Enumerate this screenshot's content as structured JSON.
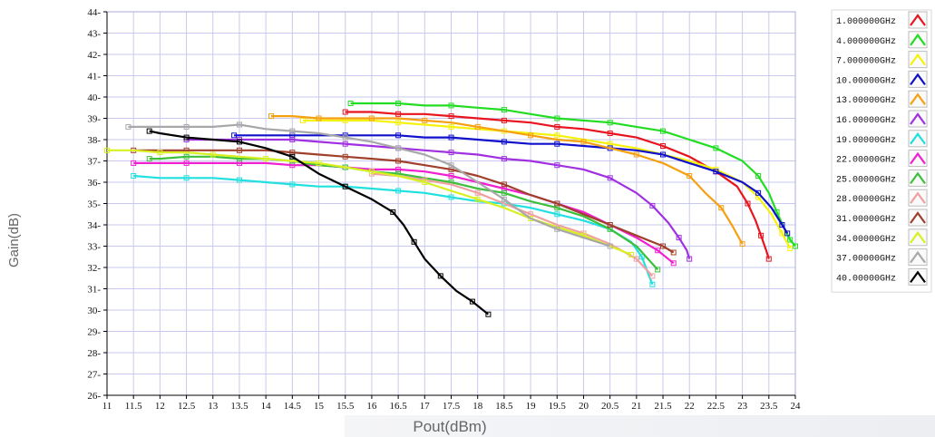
{
  "chart_data": {
    "type": "line",
    "title": "",
    "xlabel": "Pout(dBm)",
    "ylabel": "Gain(dB)",
    "xlim": [
      11,
      24
    ],
    "ylim": [
      26,
      44
    ],
    "x_ticks": [
      "11",
      "11.5",
      "12",
      "12.5",
      "13",
      "13.5",
      "14",
      "14.5",
      "15",
      "15.5",
      "16",
      "16.5",
      "17",
      "17.5",
      "18",
      "18.5",
      "19",
      "19.5",
      "20",
      "20.5",
      "21",
      "21.5",
      "22",
      "22.5",
      "23",
      "23.5",
      "24"
    ],
    "y_ticks": [
      "26",
      "27",
      "28",
      "29",
      "30",
      "31",
      "32",
      "33",
      "34",
      "35",
      "36",
      "37",
      "38",
      "39",
      "40",
      "41",
      "42",
      "43",
      "44"
    ],
    "grid": true,
    "legend_position": "right",
    "series": [
      {
        "name": "1.000000GHz",
        "color": "#e8141e",
        "x": [
          15.5,
          16.0,
          16.5,
          17.0,
          17.5,
          18.0,
          18.5,
          19.0,
          19.5,
          20.0,
          20.5,
          21.0,
          21.5,
          22.0,
          22.5,
          22.9,
          23.1,
          23.25,
          23.35,
          23.45,
          23.5
        ],
        "y": [
          39.3,
          39.3,
          39.2,
          39.2,
          39.1,
          39.0,
          38.9,
          38.8,
          38.6,
          38.5,
          38.3,
          38.1,
          37.7,
          37.2,
          36.5,
          35.8,
          35.0,
          34.2,
          33.5,
          32.8,
          32.4
        ]
      },
      {
        "name": "4.000000GHz",
        "color": "#22dd22",
        "x": [
          15.6,
          16.0,
          16.5,
          17.0,
          17.5,
          18.0,
          18.5,
          19.0,
          19.5,
          20.0,
          20.5,
          21.0,
          21.5,
          22.0,
          22.5,
          23.0,
          23.3,
          23.5,
          23.65,
          23.8,
          23.9,
          24.0
        ],
        "y": [
          39.7,
          39.7,
          39.7,
          39.6,
          39.6,
          39.5,
          39.4,
          39.2,
          39.0,
          38.9,
          38.8,
          38.6,
          38.4,
          38.0,
          37.6,
          37.0,
          36.3,
          35.5,
          34.6,
          33.8,
          33.3,
          33.0
        ]
      },
      {
        "name": "7.000000GHz",
        "color": "#f5f20a",
        "x": [
          14.7,
          15.0,
          15.5,
          16.0,
          16.5,
          17.0,
          17.5,
          18.0,
          18.5,
          19.0,
          19.5,
          20.0,
          20.5,
          21.0,
          21.5,
          22.0,
          22.5,
          23.0,
          23.3,
          23.55,
          23.75,
          23.9
        ],
        "y": [
          38.9,
          38.9,
          38.9,
          38.9,
          38.8,
          38.7,
          38.6,
          38.5,
          38.4,
          38.3,
          38.2,
          38.0,
          37.8,
          37.6,
          37.3,
          37.0,
          36.6,
          36.0,
          35.3,
          34.5,
          33.6,
          32.9
        ]
      },
      {
        "name": "10.00000GHz",
        "color": "#1010cc",
        "x": [
          13.4,
          14.0,
          14.5,
          15.0,
          15.5,
          16.0,
          16.5,
          17.0,
          17.5,
          18.0,
          18.5,
          19.0,
          19.5,
          20.0,
          20.5,
          21.0,
          21.5,
          22.0,
          22.5,
          23.0,
          23.3,
          23.55,
          23.75,
          23.85
        ],
        "y": [
          38.2,
          38.2,
          38.2,
          38.2,
          38.2,
          38.2,
          38.2,
          38.1,
          38.1,
          38.0,
          37.9,
          37.8,
          37.8,
          37.7,
          37.6,
          37.5,
          37.3,
          36.9,
          36.5,
          36.0,
          35.5,
          34.8,
          34.0,
          33.6
        ]
      },
      {
        "name": "13.00000GHz",
        "color": "#f5a010",
        "x": [
          14.1,
          14.5,
          15.0,
          15.5,
          16.0,
          16.5,
          17.0,
          17.5,
          18.0,
          18.5,
          19.0,
          19.5,
          20.0,
          20.5,
          21.0,
          21.5,
          22.0,
          22.3,
          22.6,
          22.8,
          23.0
        ],
        "y": [
          39.1,
          39.1,
          39.0,
          39.0,
          39.0,
          39.0,
          38.9,
          38.8,
          38.6,
          38.4,
          38.2,
          38.0,
          37.9,
          37.6,
          37.3,
          36.9,
          36.3,
          35.5,
          34.8,
          34.0,
          33.1
        ]
      },
      {
        "name": "16.00000GHz",
        "color": "#a030e0",
        "x": [
          12.5,
          13.0,
          13.5,
          14.0,
          14.5,
          15.0,
          15.5,
          16.0,
          16.5,
          17.0,
          17.5,
          18.0,
          18.5,
          19.0,
          19.5,
          20.0,
          20.5,
          21.0,
          21.3,
          21.6,
          21.8,
          21.95,
          22.0
        ],
        "y": [
          38.0,
          38.0,
          38.0,
          38.0,
          38.0,
          37.9,
          37.8,
          37.7,
          37.6,
          37.5,
          37.4,
          37.3,
          37.1,
          37.0,
          36.8,
          36.6,
          36.2,
          35.5,
          34.9,
          34.1,
          33.4,
          32.8,
          32.4
        ]
      },
      {
        "name": "19.00000GHz",
        "color": "#22e0e0",
        "x": [
          11.5,
          12.0,
          12.5,
          13.0,
          13.5,
          14.0,
          14.5,
          15.0,
          15.5,
          16.0,
          16.5,
          17.0,
          17.5,
          18.0,
          18.5,
          19.0,
          19.5,
          20.0,
          20.5,
          20.9,
          21.1,
          21.3
        ],
        "y": [
          36.3,
          36.2,
          36.2,
          36.2,
          36.1,
          36.0,
          35.9,
          35.8,
          35.8,
          35.7,
          35.6,
          35.5,
          35.3,
          35.1,
          35.0,
          34.8,
          34.5,
          34.2,
          33.8,
          33.2,
          32.5,
          31.2
        ]
      },
      {
        "name": "22.00000GHz",
        "color": "#f020d0",
        "x": [
          11.5,
          12.0,
          12.5,
          13.0,
          13.5,
          14.0,
          14.5,
          15.0,
          15.5,
          16.0,
          16.5,
          17.0,
          17.5,
          18.0,
          18.5,
          19.0,
          19.5,
          20.0,
          20.5,
          21.0,
          21.4,
          21.7
        ],
        "y": [
          36.9,
          36.9,
          36.9,
          36.9,
          36.9,
          36.9,
          36.8,
          36.8,
          36.7,
          36.6,
          36.6,
          36.5,
          36.3,
          36.0,
          35.7,
          35.4,
          35.0,
          34.6,
          34.0,
          33.4,
          32.8,
          32.2
        ]
      },
      {
        "name": "25.00000GHz",
        "color": "#3cc03c",
        "x": [
          11.8,
          12.0,
          12.5,
          13.0,
          13.5,
          14.0,
          14.5,
          15.0,
          15.5,
          16.0,
          16.5,
          17.0,
          17.5,
          18.0,
          18.5,
          19.0,
          19.5,
          20.0,
          20.5,
          21.0,
          21.4
        ],
        "y": [
          37.1,
          37.1,
          37.2,
          37.2,
          37.1,
          37.1,
          37.0,
          36.8,
          36.7,
          36.5,
          36.4,
          36.2,
          36.0,
          35.7,
          35.5,
          35.1,
          34.8,
          34.4,
          33.8,
          33.0,
          31.9
        ]
      },
      {
        "name": "28.00000GHz",
        "color": "#f0a0a0",
        "x": [
          16.0,
          16.5,
          17.0,
          17.5,
          18.0,
          18.5,
          19.0,
          19.5,
          20.0,
          20.5,
          21.0,
          21.3
        ],
        "y": [
          36.4,
          36.3,
          36.1,
          35.9,
          35.5,
          35.0,
          34.5,
          34.0,
          33.6,
          33.1,
          32.4,
          31.6
        ]
      },
      {
        "name": "31.00000GHz",
        "color": "#a0402a",
        "x": [
          11.5,
          12.0,
          12.5,
          13.0,
          13.5,
          14.0,
          14.5,
          15.0,
          15.5,
          16.0,
          16.5,
          17.0,
          17.5,
          18.0,
          18.5,
          19.0,
          19.5,
          20.0,
          20.5,
          21.0,
          21.5,
          21.7
        ],
        "y": [
          37.5,
          37.5,
          37.5,
          37.5,
          37.5,
          37.5,
          37.4,
          37.3,
          37.2,
          37.1,
          37.0,
          36.8,
          36.6,
          36.3,
          35.9,
          35.4,
          35.0,
          34.5,
          34.0,
          33.5,
          33.0,
          32.7
        ]
      },
      {
        "name": "34.00000GHz",
        "color": "#d8f020",
        "x": [
          11.0,
          11.5,
          12.0,
          12.5,
          13.0,
          13.5,
          14.0,
          14.5,
          15.0,
          15.5,
          16.0,
          16.5,
          17.0,
          17.5,
          18.0,
          18.5,
          19.0,
          19.5,
          20.0,
          20.5,
          20.9
        ],
        "y": [
          37.5,
          37.5,
          37.4,
          37.4,
          37.3,
          37.2,
          37.1,
          37.0,
          36.9,
          36.7,
          36.5,
          36.3,
          36.0,
          35.6,
          35.2,
          34.8,
          34.3,
          33.9,
          33.5,
          33.0,
          32.6
        ]
      },
      {
        "name": "37.00000GHz",
        "color": "#a8a8a8",
        "x": [
          11.4,
          12.0,
          12.5,
          13.0,
          13.5,
          14.0,
          14.5,
          15.0,
          15.5,
          16.0,
          16.5,
          17.0,
          17.5,
          18.0,
          18.5,
          19.0,
          19.5,
          20.0,
          20.5
        ],
        "y": [
          38.6,
          38.6,
          38.6,
          38.6,
          38.7,
          38.5,
          38.4,
          38.3,
          38.1,
          37.9,
          37.6,
          37.3,
          36.8,
          36.0,
          35.2,
          34.3,
          33.8,
          33.4,
          33.0
        ]
      },
      {
        "name": "40.00000GHz",
        "color": "#000000",
        "x": [
          11.8,
          12.0,
          12.5,
          13.0,
          13.5,
          14.0,
          14.5,
          15.0,
          15.5,
          16.0,
          16.4,
          16.6,
          16.8,
          17.0,
          17.3,
          17.6,
          17.9,
          18.2
        ],
        "y": [
          38.4,
          38.3,
          38.1,
          38.0,
          37.9,
          37.6,
          37.2,
          36.4,
          35.8,
          35.2,
          34.6,
          34.0,
          33.2,
          32.4,
          31.6,
          30.9,
          30.4,
          29.8
        ]
      }
    ]
  }
}
